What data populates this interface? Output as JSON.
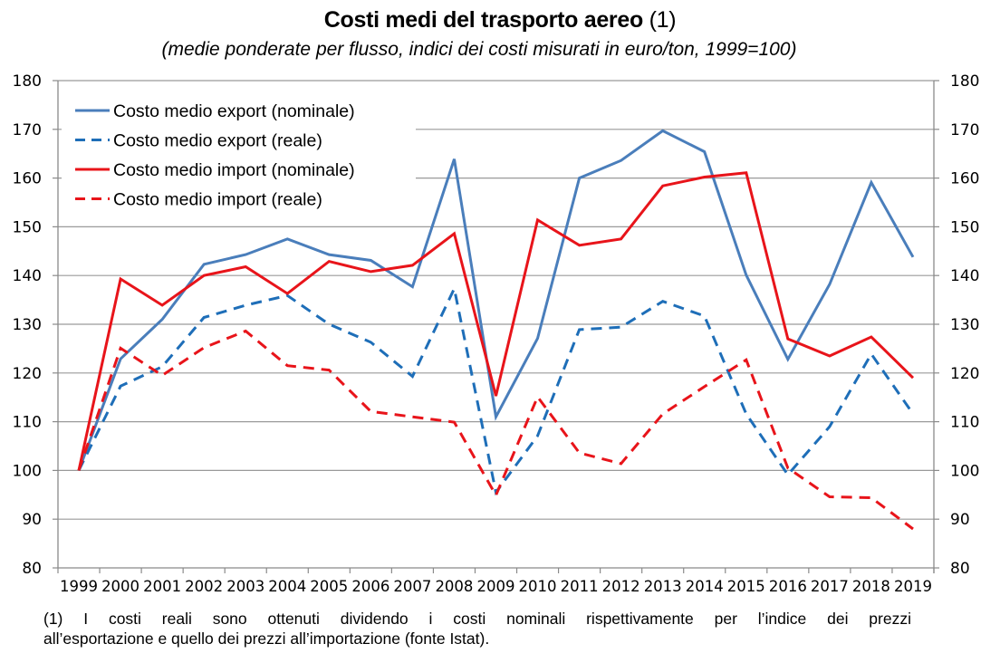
{
  "chart_data": {
    "type": "line",
    "title": "Costi medi del trasporto aereo",
    "title_note": "(1)",
    "subtitle": "(medie ponderate per flusso, indici dei costi misurati in euro/ton, 1999=100)",
    "xlabel": "",
    "ylabel": "",
    "ylim": [
      80,
      180
    ],
    "yticks": [
      80,
      90,
      100,
      110,
      120,
      130,
      140,
      150,
      160,
      170,
      180
    ],
    "ytick_labels": [
      "80",
      "90",
      "100",
      "110",
      "120",
      "130",
      "140",
      "150",
      "160",
      "170",
      "180"
    ],
    "secondary_y_axis": true,
    "grid": true,
    "legend_position": "top-left",
    "categories": [
      "1999",
      "2000",
      "2001",
      "2002",
      "2003",
      "2004",
      "2005",
      "2006",
      "2007",
      "2008",
      "2009",
      "2010",
      "2011",
      "2012",
      "2013",
      "2014",
      "2015",
      "2016",
      "2017",
      "2018",
      "2019"
    ],
    "series": [
      {
        "name": "Costo medio export (nominale)",
        "color": "#4A7EBB",
        "style": "solid",
        "values": [
          100,
          122.9,
          131.0,
          142.3,
          144.3,
          147.5,
          144.3,
          143.1,
          137.7,
          163.9,
          111.0,
          127.1,
          160.0,
          163.6,
          169.7,
          165.4,
          140.1,
          122.8,
          138.2,
          159.1,
          143.8
        ]
      },
      {
        "name": "Costo medio export (reale)",
        "color": "#1E6EB8",
        "style": "dashed",
        "values": [
          100,
          117.3,
          121.3,
          131.4,
          133.9,
          135.9,
          130.0,
          126.3,
          119.3,
          137.3,
          95.5,
          107.1,
          128.9,
          129.4,
          134.7,
          131.7,
          111.6,
          99.1,
          109.0,
          123.9,
          111.6
        ]
      },
      {
        "name": "Costo medio import (nominale)",
        "color": "#E8141A",
        "style": "solid",
        "values": [
          100,
          139.3,
          133.9,
          140.0,
          141.8,
          136.3,
          142.9,
          140.8,
          142.1,
          148.6,
          115.3,
          151.4,
          146.2,
          147.5,
          158.4,
          160.2,
          161.1,
          127.0,
          123.5,
          127.4,
          119.0
        ]
      },
      {
        "name": "Costo medio import (reale)",
        "color": "#E8141A",
        "style": "dashed",
        "values": [
          100,
          125.1,
          119.5,
          125.2,
          128.6,
          121.5,
          120.6,
          112.1,
          111.0,
          109.9,
          94.9,
          115.1,
          103.6,
          101.4,
          111.6,
          117.2,
          122.7,
          100.5,
          94.6,
          94.4,
          88.0
        ]
      }
    ]
  },
  "footnote": {
    "line1": "(1) I costi reali sono ottenuti dividendo i costi nominali rispettivamente per l’indice dei prezzi",
    "line2": "all’esportazione e quello dei prezzi all’importazione (fonte Istat)."
  }
}
